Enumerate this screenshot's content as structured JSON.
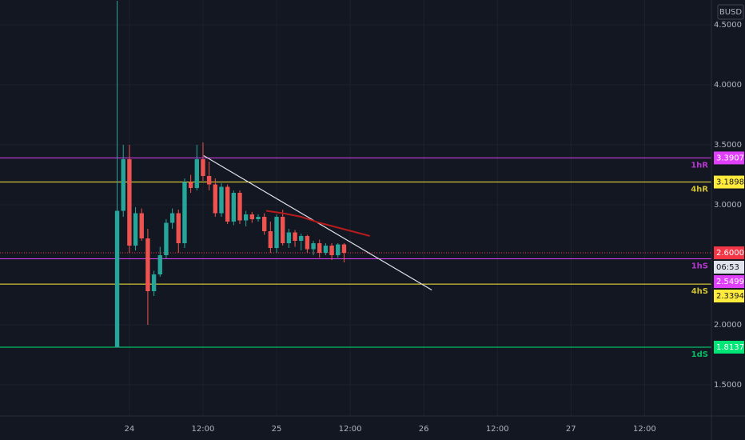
{
  "chart_data": {
    "type": "candlestick",
    "currency": "BUSD",
    "xlim": [
      -21.1,
      94.9
    ],
    "xticks": [
      {
        "value": 0,
        "label": "24"
      },
      {
        "value": 12,
        "label": "12:00"
      },
      {
        "value": 24,
        "label": "25"
      },
      {
        "value": 36,
        "label": "12:00"
      },
      {
        "value": 48,
        "label": "26"
      },
      {
        "value": 60,
        "label": "12:00"
      },
      {
        "value": 72,
        "label": "27"
      },
      {
        "value": 84,
        "label": "12:00"
      }
    ],
    "ylim": [
      1.24,
      4.707
    ],
    "yticks": [
      {
        "value": 1.5,
        "label": "1.5000"
      },
      {
        "value": 2,
        "label": "2.0000"
      },
      {
        "value": 3,
        "label": "3.0000"
      },
      {
        "value": 3.5,
        "label": "3.5000"
      },
      {
        "value": 4,
        "label": "4.0000"
      },
      {
        "value": 4.5,
        "label": "4.5000"
      }
    ],
    "grid": true,
    "up_color": "#26a69a",
    "down_color": "#ef5350",
    "x": [
      -2,
      -1,
      0,
      1,
      2,
      3,
      4,
      5,
      6,
      7,
      8,
      9,
      10,
      11,
      12,
      13,
      14,
      15,
      16,
      17,
      18,
      19,
      20,
      21,
      22,
      23,
      24,
      25,
      26,
      27,
      28,
      29,
      30,
      31,
      32,
      33,
      34,
      35
    ],
    "open": [
      1.81,
      2.95,
      3.38,
      2.66,
      2.93,
      2.72,
      2.28,
      2.42,
      2.58,
      2.85,
      2.93,
      2.68,
      3.19,
      3.14,
      3.38,
      3.24,
      3.17,
      2.93,
      3.15,
      2.86,
      3.1,
      2.87,
      2.92,
      2.88,
      2.9,
      2.78,
      2.64,
      2.9,
      2.68,
      2.77,
      2.7,
      2.74,
      2.63,
      2.68,
      2.6,
      2.66,
      2.58,
      2.67
    ],
    "high": [
      4.7,
      3.5,
      3.5,
      2.98,
      2.97,
      2.8,
      2.45,
      2.65,
      2.88,
      2.97,
      2.96,
      3.22,
      3.25,
      3.5,
      3.52,
      3.36,
      3.22,
      3.18,
      3.17,
      3.12,
      3.12,
      2.95,
      2.94,
      2.92,
      2.93,
      2.86,
      2.92,
      2.96,
      2.8,
      2.79,
      2.76,
      2.75,
      2.7,
      2.71,
      2.68,
      2.68,
      2.68,
      2.68
    ],
    "low": [
      1.81,
      2.9,
      2.6,
      2.62,
      2.7,
      2.0,
      2.24,
      2.4,
      2.55,
      2.8,
      2.6,
      2.64,
      3.1,
      3.12,
      3.2,
      3.12,
      2.9,
      2.9,
      2.84,
      2.83,
      2.84,
      2.82,
      2.85,
      2.86,
      2.75,
      2.6,
      2.6,
      2.66,
      2.64,
      2.65,
      2.62,
      2.6,
      2.58,
      2.56,
      2.58,
      2.54,
      2.56,
      2.52
    ],
    "close": [
      2.95,
      3.38,
      2.66,
      2.93,
      2.72,
      2.28,
      2.42,
      2.58,
      2.85,
      2.93,
      2.68,
      3.19,
      3.14,
      3.38,
      3.24,
      3.17,
      2.93,
      3.15,
      2.86,
      3.1,
      2.87,
      2.92,
      2.88,
      2.9,
      2.78,
      2.64,
      2.9,
      2.68,
      2.77,
      2.7,
      2.74,
      2.63,
      2.68,
      2.6,
      2.66,
      2.58,
      2.67,
      2.6
    ],
    "levels": [
      {
        "name": "1hR",
        "value": 3.3907,
        "value_label": "3.3907",
        "color": "#e040fb"
      },
      {
        "name": "4hR",
        "value": 3.1898,
        "value_label": "3.1898",
        "color": "#ffeb3b"
      },
      {
        "name": "1hS",
        "value": 2.5499,
        "value_label": "2.5499",
        "color": "#e040fb"
      },
      {
        "name": "4hS",
        "value": 2.3394,
        "value_label": "2.3394",
        "color": "#ffeb3b"
      },
      {
        "name": "1dS",
        "value": 1.8137,
        "value_label": "1.8137",
        "color": "#00e676"
      }
    ],
    "last_price": {
      "value": 2.6,
      "label": "2.6000",
      "color": "#f23645",
      "countdown": "06:53"
    },
    "overlays": [
      {
        "color": "#e0e3eb",
        "x": [
          12.1,
          49.3
        ],
        "values": [
          3.41,
          2.29
        ]
      },
      {
        "color": "#b71c1c",
        "x": [
          22.3,
          25,
          28,
          31,
          34,
          37,
          39.2
        ],
        "values": [
          2.95,
          2.93,
          2.9,
          2.85,
          2.81,
          2.77,
          2.74
        ]
      }
    ]
  }
}
